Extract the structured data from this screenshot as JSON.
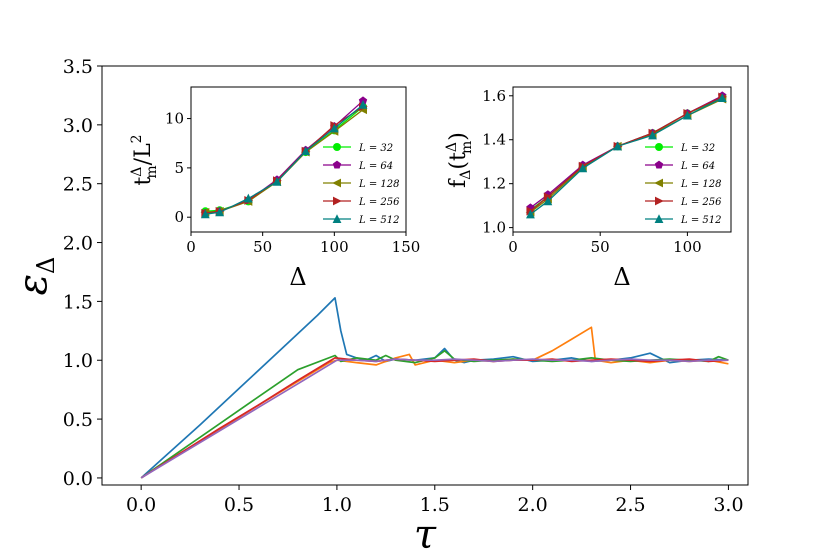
{
  "chart_data": [
    {
      "id": "main",
      "type": "line",
      "title": "",
      "xlabel": "τ",
      "ylabel": "ε",
      "ylabel_sub": "Δ",
      "xlim": [
        -0.2,
        3.1
      ],
      "ylim": [
        -0.06,
        3.5
      ],
      "xticks": [
        0.0,
        0.5,
        1.0,
        1.5,
        2.0,
        2.5,
        3.0
      ],
      "xtick_labels": [
        "0.0",
        "0.5",
        "1.0",
        "1.5",
        "2.0",
        "2.5",
        "3.0"
      ],
      "yticks": [
        0.0,
        0.5,
        1.0,
        1.5,
        2.0,
        2.5,
        3.0,
        3.5
      ],
      "ytick_labels": [
        "0.0",
        "0.5",
        "1.0",
        "1.5",
        "2.0",
        "2.5",
        "3.0",
        "3.5"
      ],
      "series": [
        {
          "name": "blue",
          "color": "#1f77b4",
          "x": [
            0.0,
            0.1,
            0.3,
            0.5,
            0.7,
            0.9,
            0.99,
            1.02,
            1.05,
            1.1,
            1.15,
            1.2,
            1.25,
            1.3,
            1.4,
            1.5,
            1.55,
            1.6,
            1.65,
            1.7,
            1.8,
            1.9,
            2.0,
            2.1,
            2.2,
            2.3,
            2.4,
            2.5,
            2.6,
            2.7,
            2.8,
            2.9,
            3.0
          ],
          "y": [
            0.0,
            0.15,
            0.45,
            0.76,
            1.07,
            1.38,
            1.53,
            1.25,
            1.05,
            1.02,
            1.0,
            1.04,
            0.99,
            1.01,
            1.0,
            1.02,
            1.1,
            1.0,
            0.98,
            1.0,
            1.01,
            1.03,
            0.99,
            1.0,
            1.02,
            0.99,
            1.0,
            1.02,
            1.06,
            0.98,
            1.0,
            1.01,
            1.0
          ]
        },
        {
          "name": "orange",
          "color": "#ff7f0e",
          "x": [
            0.0,
            0.2,
            0.4,
            0.6,
            0.8,
            0.96,
            1.0,
            1.1,
            1.2,
            1.3,
            1.37,
            1.4,
            1.5,
            1.6,
            1.7,
            1.8,
            1.9,
            2.0,
            2.1,
            2.2,
            2.3,
            2.32,
            2.4,
            2.5,
            2.6,
            2.7,
            2.8,
            2.9,
            3.0
          ],
          "y": [
            0.0,
            0.21,
            0.41,
            0.62,
            0.82,
            0.98,
            1.0,
            0.98,
            0.96,
            1.02,
            1.05,
            0.96,
            1.0,
            0.98,
            1.0,
            0.99,
            1.01,
            1.0,
            1.08,
            1.18,
            1.28,
            1.0,
            0.98,
            1.0,
            0.98,
            1.0,
            0.99,
            1.0,
            0.97
          ]
        },
        {
          "name": "green",
          "color": "#2ca02c",
          "x": [
            0.0,
            0.2,
            0.4,
            0.6,
            0.8,
            0.99,
            1.02,
            1.1,
            1.2,
            1.25,
            1.3,
            1.4,
            1.5,
            1.55,
            1.6,
            1.7,
            1.8,
            1.9,
            2.0,
            2.1,
            2.2,
            2.3,
            2.4,
            2.5,
            2.6,
            2.7,
            2.8,
            2.9,
            2.95,
            3.0
          ],
          "y": [
            0.0,
            0.23,
            0.46,
            0.69,
            0.92,
            1.04,
            0.99,
            1.02,
            1.0,
            1.04,
            1.0,
            0.98,
            1.02,
            1.08,
            1.01,
            0.99,
            1.0,
            1.01,
            1.0,
            0.99,
            1.0,
            1.02,
            1.0,
            0.99,
            1.0,
            1.01,
            1.0,
            0.99,
            1.03,
            1.0
          ]
        },
        {
          "name": "red",
          "color": "#d62728",
          "x": [
            0.0,
            0.2,
            0.4,
            0.6,
            0.8,
            0.99,
            1.1,
            1.2,
            1.3,
            1.4,
            1.5,
            1.6,
            1.7,
            1.8,
            1.9,
            2.0,
            2.1,
            2.2,
            2.3,
            2.4,
            2.5,
            2.6,
            2.7,
            2.8,
            2.9,
            3.0
          ],
          "y": [
            0.0,
            0.21,
            0.42,
            0.62,
            0.83,
            1.02,
            1.0,
            0.99,
            1.01,
            1.0,
            0.99,
            1.0,
            1.01,
            0.99,
            1.0,
            1.0,
            1.01,
            0.99,
            1.0,
            1.01,
            1.0,
            0.99,
            1.0,
            1.01,
            0.99,
            1.0
          ]
        },
        {
          "name": "purple",
          "color": "#9467bd",
          "x": [
            0.0,
            0.2,
            0.4,
            0.6,
            0.8,
            1.0,
            1.1,
            1.2,
            1.3,
            1.4,
            1.5,
            1.6,
            1.7,
            1.8,
            1.9,
            2.0,
            2.1,
            2.2,
            2.3,
            2.4,
            2.5,
            2.6,
            2.7,
            2.8,
            2.9,
            3.0
          ],
          "y": [
            0.0,
            0.2,
            0.4,
            0.6,
            0.8,
            1.0,
            1.0,
            0.99,
            1.01,
            1.0,
            1.0,
            1.01,
            1.0,
            0.99,
            1.0,
            1.01,
            1.0,
            1.0,
            0.99,
            1.0,
            1.01,
            1.0,
            1.0,
            0.99,
            1.0,
            1.0
          ]
        }
      ]
    },
    {
      "id": "inset_left",
      "type": "line",
      "xlabel": "Δ",
      "ylabel": "t",
      "ylabel_sup": "Δ",
      "ylabel_sub": "m",
      "ylabel_rest": "/L",
      "ylabel_pow": "2",
      "xlim": [
        0,
        150
      ],
      "ylim": [
        -1.5,
        13.2
      ],
      "xticks": [
        0,
        50,
        100,
        150
      ],
      "xtick_labels": [
        "0",
        "50",
        "100",
        "150"
      ],
      "yticks": [
        0,
        5,
        10
      ],
      "ytick_labels": [
        "0",
        "5",
        "10"
      ],
      "x": [
        10,
        20,
        40,
        60,
        80,
        100,
        120
      ],
      "series": [
        {
          "name": "L = 32",
          "color": "#00ee00",
          "marker": "circle",
          "values": [
            0.6,
            0.7,
            1.6,
            3.7,
            6.6,
            8.8,
            11.2
          ]
        },
        {
          "name": "L = 64",
          "color": "#8b008b",
          "marker": "pentagon",
          "values": [
            0.4,
            0.6,
            1.7,
            3.8,
            6.8,
            9.2,
            11.8
          ]
        },
        {
          "name": "L = 128",
          "color": "#808000",
          "marker": "triangle-left",
          "values": [
            0.5,
            0.6,
            1.6,
            3.6,
            6.6,
            8.7,
            10.9
          ]
        },
        {
          "name": "L = 256",
          "color": "#b22222",
          "marker": "triangle-right",
          "values": [
            0.4,
            0.6,
            1.7,
            3.7,
            6.7,
            9.3,
            11.2
          ]
        },
        {
          "name": "L = 512",
          "color": "#008080",
          "marker": "triangle-up",
          "values": [
            0.3,
            0.5,
            1.9,
            3.6,
            6.7,
            9.0,
            11.4
          ]
        }
      ]
    },
    {
      "id": "inset_right",
      "type": "line",
      "xlabel": "Δ",
      "ylabel": "f",
      "ylabel_sub": "Δ",
      "ylabel_paren": "(t",
      "ylabel_inner_sup": "Δ",
      "ylabel_inner_sub": "m",
      "ylabel_close": ")",
      "xlim": [
        0,
        125
      ],
      "ylim": [
        0.98,
        1.64
      ],
      "xticks": [
        0,
        50,
        100
      ],
      "xtick_labels": [
        "0",
        "50",
        "100"
      ],
      "yticks": [
        1.0,
        1.2,
        1.4,
        1.6
      ],
      "ytick_labels": [
        "1.0",
        "1.2",
        "1.4",
        "1.6"
      ],
      "x": [
        10,
        20,
        40,
        60,
        80,
        100,
        120
      ],
      "series": [
        {
          "name": "L = 32",
          "color": "#00ee00",
          "marker": "circle",
          "values": [
            1.08,
            1.14,
            1.28,
            1.37,
            1.43,
            1.52,
            1.59
          ]
        },
        {
          "name": "L = 64",
          "color": "#8b008b",
          "marker": "pentagon",
          "values": [
            1.09,
            1.15,
            1.285,
            1.37,
            1.43,
            1.52,
            1.6
          ]
        },
        {
          "name": "L = 128",
          "color": "#808000",
          "marker": "triangle-left",
          "values": [
            1.07,
            1.13,
            1.275,
            1.37,
            1.425,
            1.51,
            1.585
          ]
        },
        {
          "name": "L = 256",
          "color": "#b22222",
          "marker": "triangle-right",
          "values": [
            1.075,
            1.14,
            1.28,
            1.37,
            1.43,
            1.52,
            1.595
          ]
        },
        {
          "name": "L = 512",
          "color": "#008080",
          "marker": "triangle-up",
          "values": [
            1.06,
            1.12,
            1.27,
            1.37,
            1.42,
            1.51,
            1.59
          ]
        }
      ]
    }
  ]
}
